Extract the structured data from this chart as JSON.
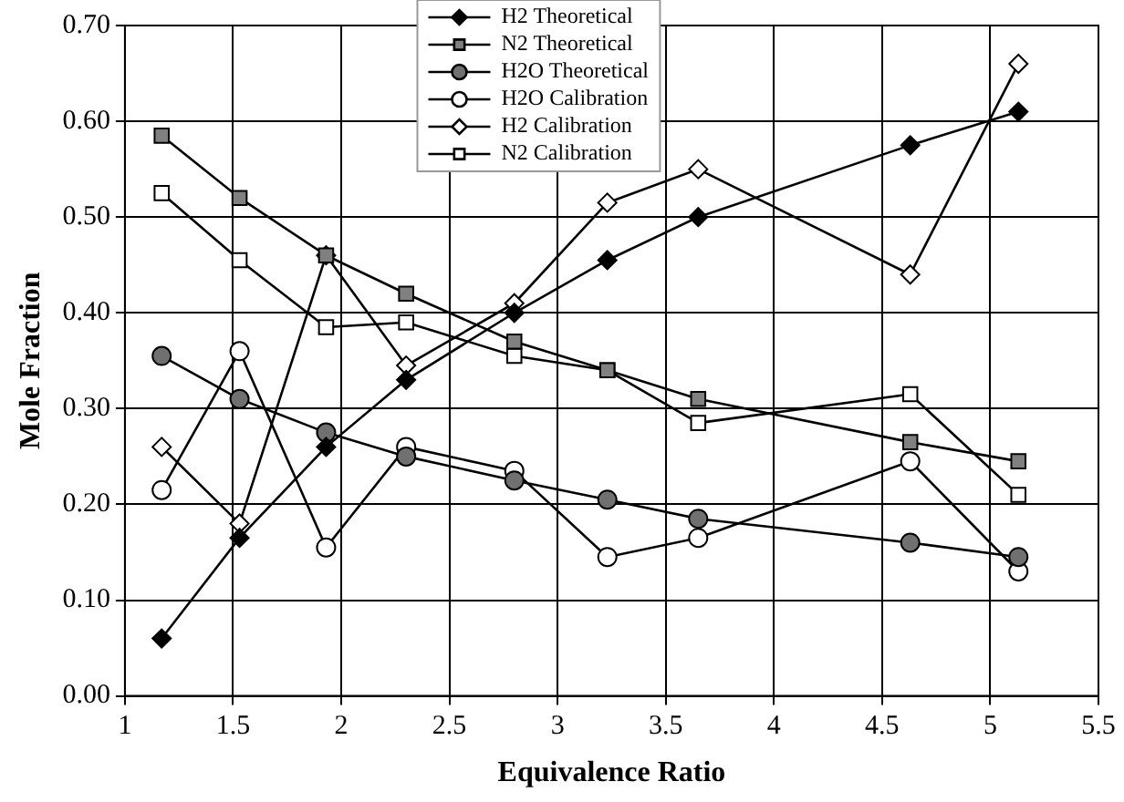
{
  "chart_data": {
    "type": "line",
    "xlabel": "Equivalence Ratio",
    "ylabel": "Mole Fraction",
    "x": [
      1.17,
      1.53,
      1.93,
      2.3,
      2.8,
      3.23,
      3.65,
      4.63,
      5.13
    ],
    "series": [
      {
        "name": "H2 Theoretical",
        "color": "#000000",
        "marker": "diamond",
        "values": [
          0.06,
          0.165,
          0.26,
          0.33,
          0.4,
          0.455,
          0.5,
          0.575,
          0.61
        ]
      },
      {
        "name": "N2 Theoretical",
        "color": "#808080",
        "marker": "square",
        "values": [
          0.585,
          0.52,
          0.46,
          0.42,
          0.37,
          0.34,
          0.31,
          0.265,
          0.245
        ]
      },
      {
        "name": "H2O Theoretical",
        "color": "#707070",
        "marker": "circle",
        "values": [
          0.355,
          0.31,
          0.275,
          0.25,
          0.225,
          0.205,
          0.185,
          0.16,
          0.145
        ]
      },
      {
        "name": "H2O Calibration",
        "color": "#ffffff",
        "marker": "circle",
        "values": [
          0.215,
          0.36,
          0.155,
          0.26,
          0.235,
          0.145,
          0.165,
          0.245,
          0.13
        ]
      },
      {
        "name": "H2 Calibration",
        "color": "#ffffff",
        "marker": "diamond",
        "values": [
          0.26,
          0.18,
          0.46,
          0.345,
          0.41,
          0.515,
          0.55,
          0.44,
          0.66
        ]
      },
      {
        "name": "N2 Calibration",
        "color": "#ffffff",
        "marker": "square",
        "values": [
          0.525,
          0.455,
          0.385,
          0.39,
          0.355,
          0.34,
          0.285,
          0.315,
          0.21
        ]
      }
    ],
    "xlim": [
      1,
      5.5
    ],
    "xticks": [
      1,
      1.5,
      2,
      2.5,
      3,
      3.5,
      4,
      4.5,
      5,
      5.5
    ],
    "ylim": [
      0,
      0.7
    ],
    "yticks": [
      {
        "value": 0,
        "label": "0.00"
      },
      {
        "value": 0.1,
        "label": "0.10"
      },
      {
        "value": 0.2,
        "label": "0.20"
      },
      {
        "value": 0.3,
        "label": "0.30"
      },
      {
        "value": 0.4,
        "label": "0.40"
      },
      {
        "value": 0.5,
        "label": "0.50"
      },
      {
        "value": 0.6,
        "label": "0.60"
      },
      {
        "value": 0.7,
        "label": "0.70"
      }
    ],
    "grid": true,
    "legend": "top",
    "line_style": "solid"
  }
}
